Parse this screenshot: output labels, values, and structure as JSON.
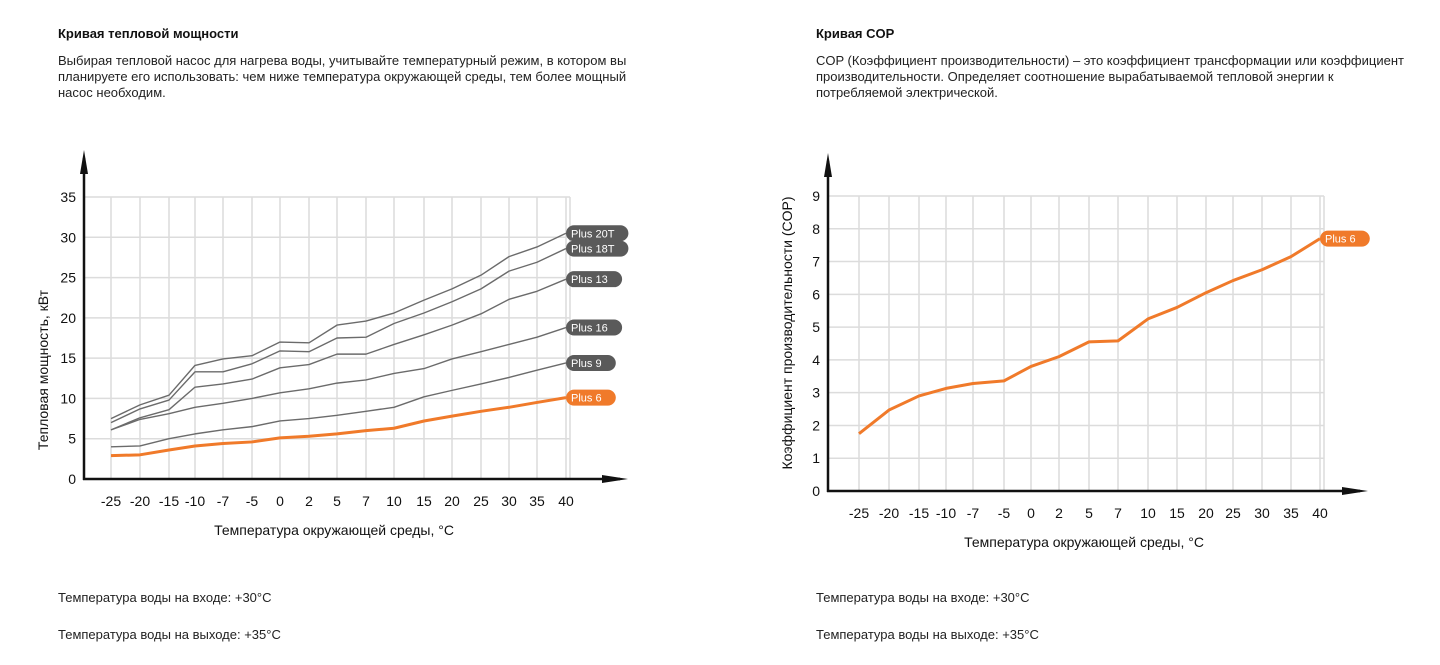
{
  "left": {
    "title": "Кривая тепловой мощности",
    "description": "Выбирая тепловой насос для нагрева воды, учитывайте температурный режим, в котором вы планируете его использовать: чем ниже температура окружающей среды, тем более мощный насос необходим.",
    "note_in": "Температура воды на входе: +30°C",
    "note_out": "Температура воды на выходе: +35°C"
  },
  "right": {
    "title": "Кривая COP",
    "description": "COP (Коэффициент производительности) – это коэффициент трансформации или коэффициент производительности. Определяет соотношение вырабатываемой тепловой энергии к потребляемой электрической.",
    "note_in": "Температура воды на входе: +30°C",
    "note_out": "Температура воды на выходе: +35°C"
  },
  "colors": {
    "accent": "#f07a2a",
    "series_gray": "#6b6b6b",
    "badge_gray": "#5a5a5a",
    "grid": "#dcdcdc",
    "axis": "#111111"
  },
  "chart_data": [
    {
      "type": "line",
      "title": "Кривая тепловой мощности",
      "xlabel": "Температура окружающей среды, °C",
      "ylabel": "Тепловая мощность, кВт",
      "categories": [
        "-25",
        "-20",
        "-15",
        "-10",
        "-7",
        "-5",
        "0",
        "2",
        "5",
        "7",
        "10",
        "15",
        "20",
        "25",
        "30",
        "35",
        "40"
      ],
      "yticks": [
        0,
        5,
        10,
        15,
        20,
        25,
        30,
        35
      ],
      "ylim": [
        0,
        35
      ],
      "grid": true,
      "legend": "end-of-line badges",
      "series": [
        {
          "name": "Plus 20T",
          "highlight": false,
          "values": [
            7.5,
            9.2,
            10.4,
            14.1,
            14.9,
            15.3,
            17.0,
            16.9,
            19.1,
            19.6,
            20.6,
            22.2,
            23.6,
            25.3,
            27.6,
            28.8,
            30.5
          ]
        },
        {
          "name": "Plus 18T",
          "highlight": false,
          "values": [
            7.0,
            8.7,
            9.8,
            13.3,
            13.3,
            14.3,
            15.9,
            15.8,
            17.5,
            17.6,
            19.3,
            20.6,
            22.0,
            23.6,
            25.8,
            26.9,
            28.6
          ]
        },
        {
          "name": "Plus 13",
          "highlight": false,
          "values": [
            6.1,
            7.6,
            8.6,
            11.4,
            11.8,
            12.4,
            13.8,
            14.2,
            15.5,
            15.5,
            16.7,
            17.9,
            19.1,
            20.5,
            22.3,
            23.3,
            24.8
          ]
        },
        {
          "name": "Plus 16",
          "highlight": false,
          "values": [
            6.1,
            7.4,
            8.1,
            8.9,
            9.4,
            10.0,
            10.7,
            11.2,
            11.9,
            12.3,
            13.1,
            13.7,
            14.9,
            15.8,
            16.7,
            17.6,
            18.8
          ]
        },
        {
          "name": "Plus 9",
          "highlight": false,
          "values": [
            4.0,
            4.1,
            5.0,
            5.6,
            6.1,
            6.5,
            7.2,
            7.5,
            7.9,
            8.4,
            8.9,
            10.2,
            11.0,
            11.8,
            12.6,
            13.5,
            14.4
          ]
        },
        {
          "name": "Plus 6",
          "highlight": true,
          "values": [
            2.9,
            3.0,
            3.6,
            4.1,
            4.4,
            4.6,
            5.1,
            5.3,
            5.6,
            6.0,
            6.3,
            7.2,
            7.8,
            8.4,
            8.9,
            9.5,
            10.1
          ]
        }
      ]
    },
    {
      "type": "line",
      "title": "Кривая COP",
      "xlabel": "Температура окружающей среды, °C",
      "ylabel": "Коэффициент производительности (COP)",
      "categories": [
        "-25",
        "-20",
        "-15",
        "-10",
        "-7",
        "-5",
        "0",
        "2",
        "5",
        "7",
        "10",
        "15",
        "20",
        "25",
        "30",
        "35",
        "40"
      ],
      "yticks": [
        0,
        1,
        2,
        3,
        4,
        5,
        6,
        7,
        8,
        9
      ],
      "ylim": [
        0,
        9
      ],
      "grid": true,
      "legend": "end-of-line badge",
      "series": [
        {
          "name": "Plus 6",
          "highlight": true,
          "values": [
            1.75,
            2.47,
            2.9,
            3.13,
            3.28,
            3.36,
            3.8,
            4.1,
            4.55,
            4.58,
            5.25,
            5.6,
            6.05,
            6.42,
            6.75,
            7.15,
            7.7
          ]
        }
      ]
    }
  ]
}
